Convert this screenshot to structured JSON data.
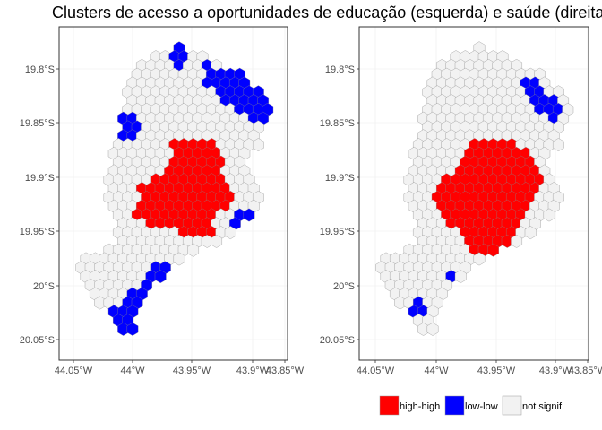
{
  "title": "Clusters de acesso a oportunidades de educação (esquerda) e saúde (direita)",
  "y_ticks": [
    "19.8°S",
    "19.85°S",
    "19.9°S",
    "19.95°S",
    "20°S",
    "20.05°S"
  ],
  "x_ticks": [
    "44.05°W",
    "44°W",
    "43.95°W",
    "43.9°W",
    "43.85°W"
  ],
  "legend": [
    {
      "label": "high-high",
      "color": "#ff0000"
    },
    {
      "label": "low-low",
      "color": "#0000ff"
    },
    {
      "label": "not signif.",
      "color": "#f2f2f2"
    }
  ],
  "colors": {
    "high-high": "#ff0000",
    "low-low": "#0000ff",
    "not-signif": "#f2f2f2",
    "grid": "#ebebeb",
    "panel-border": "#333333"
  },
  "panels": [
    {
      "name": "educação",
      "position": "left"
    },
    {
      "name": "saúde",
      "position": "right"
    }
  ]
}
